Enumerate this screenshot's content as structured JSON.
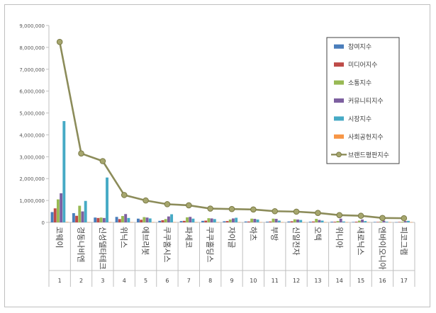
{
  "chart_data": {
    "type": "bar",
    "title": "",
    "xlabel": "",
    "ylabel": "",
    "ylim": [
      0,
      9000000
    ],
    "ytick_step": 1000000,
    "yticks": [
      "0",
      "1,000,000",
      "2,000,000",
      "3,000,000",
      "4,000,000",
      "5,000,000",
      "6,000,000",
      "7,000,000",
      "8,000,000",
      "9,000,000"
    ],
    "grid": false,
    "legend": "right",
    "categories": [
      "코웨이",
      "경동나비엔",
      "신성델타테크",
      "위닉스",
      "에브리봇",
      "쿠쿠홈시스",
      "파세코",
      "쿠쿠홀딩스",
      "자이글",
      "하츠",
      "부방",
      "신일전자",
      "오텍",
      "위니아",
      "새로닉스",
      "엔바이오니아",
      "피코그램"
    ],
    "ranks": [
      "1",
      "2",
      "3",
      "4",
      "5",
      "6",
      "7",
      "8",
      "9",
      "10",
      "11",
      "12",
      "13",
      "14",
      "15",
      "16",
      "17"
    ],
    "series": [
      {
        "name": "참여지수",
        "color": "#4a7ebb",
        "kind": "bar",
        "values": [
          470000,
          420000,
          220000,
          250000,
          170000,
          70000,
          60000,
          70000,
          50000,
          40000,
          30000,
          40000,
          30000,
          30000,
          20000,
          20000,
          10000
        ]
      },
      {
        "name": "미디어지수",
        "color": "#be4b48",
        "kind": "bar",
        "values": [
          640000,
          300000,
          200000,
          150000,
          120000,
          100000,
          70000,
          80000,
          60000,
          40000,
          40000,
          50000,
          40000,
          30000,
          30000,
          20000,
          20000
        ]
      },
      {
        "name": "소통지수",
        "color": "#98b954",
        "kind": "bar",
        "values": [
          1050000,
          760000,
          220000,
          290000,
          240000,
          150000,
          230000,
          190000,
          130000,
          170000,
          170000,
          140000,
          160000,
          60000,
          80000,
          40000,
          30000
        ]
      },
      {
        "name": "커뮤니티지수",
        "color": "#7d60a0",
        "kind": "bar",
        "values": [
          1330000,
          500000,
          200000,
          380000,
          220000,
          270000,
          250000,
          180000,
          180000,
          160000,
          160000,
          130000,
          110000,
          170000,
          130000,
          80000,
          60000
        ]
      },
      {
        "name": "시장지수",
        "color": "#46aac5",
        "kind": "bar",
        "values": [
          4630000,
          980000,
          2050000,
          200000,
          180000,
          370000,
          170000,
          150000,
          210000,
          130000,
          80000,
          110000,
          80000,
          40000,
          60000,
          30000,
          70000
        ]
      },
      {
        "name": "사회공헌지수",
        "color": "#f79646",
        "kind": "bar",
        "values": [
          20000,
          10000,
          10000,
          10000,
          10000,
          10000,
          10000,
          10000,
          10000,
          10000,
          10000,
          10000,
          10000,
          10000,
          10000,
          10000,
          10000
        ]
      },
      {
        "name": "브랜드평판지수",
        "color": "#8c8c5a",
        "kind": "line",
        "values": [
          8250000,
          3150000,
          2800000,
          1250000,
          1000000,
          830000,
          780000,
          630000,
          610000,
          590000,
          510000,
          490000,
          430000,
          330000,
          300000,
          200000,
          190000
        ]
      }
    ]
  }
}
